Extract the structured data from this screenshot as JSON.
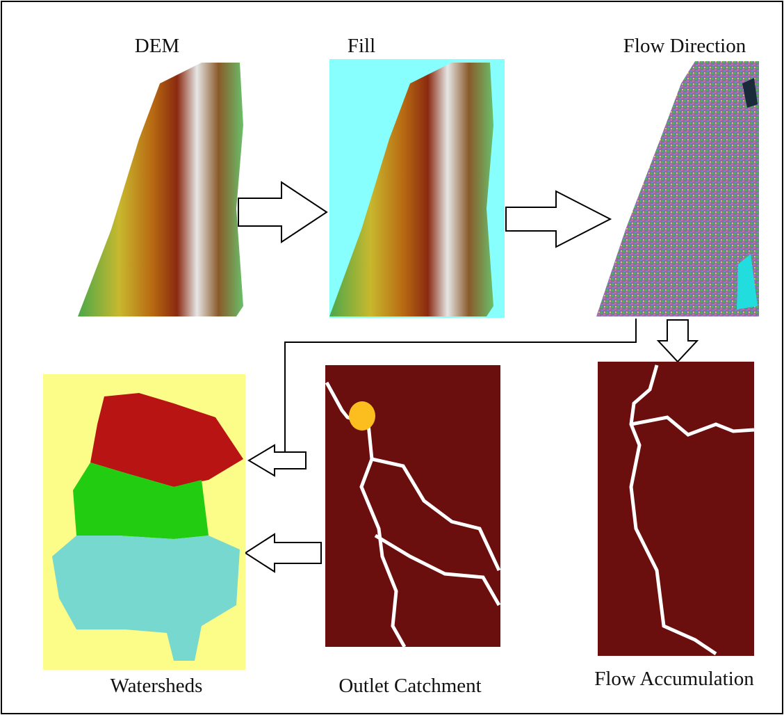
{
  "nodes": [
    {
      "label": "DEM"
    },
    {
      "label": "Fill"
    },
    {
      "label": "Flow Direction"
    },
    {
      "label": "Flow Accumulation"
    },
    {
      "label": "Outlet Catchment"
    },
    {
      "label": "Watersheds"
    }
  ]
}
